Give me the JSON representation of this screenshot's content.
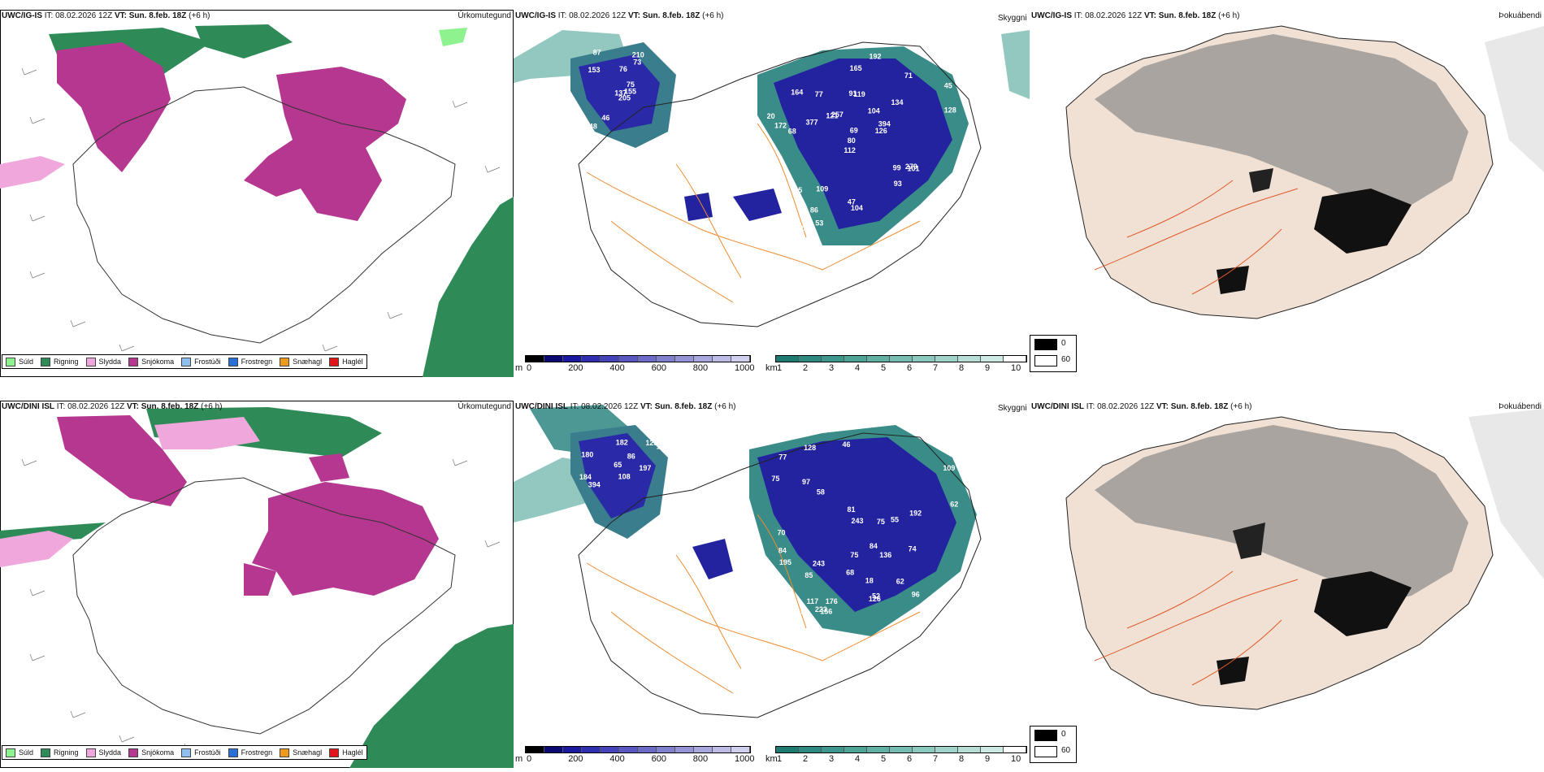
{
  "rows": [
    {
      "model": "UWC/IG-IS",
      "it": "IT: 08.02.2026 12Z",
      "vt_label": "VT:",
      "vt": "Sun. 8.feb. 18Z",
      "lead": "(+6 h)",
      "precip_title": "Úrkomutegund",
      "vis_title": "Skyggni",
      "fog_title": "Þokuábendi",
      "cloud_labels": [
        "205",
        "153",
        "137",
        "248",
        "75",
        "46",
        "210",
        "76",
        "73",
        "155",
        "87",
        "74",
        "68",
        "45",
        "112",
        "134",
        "80",
        "91",
        "104",
        "15",
        "257",
        "326",
        "86",
        "119",
        "394",
        "101",
        "164",
        "165",
        "172",
        "99",
        "128",
        "80",
        "47",
        "69",
        "77",
        "71",
        "109",
        "78",
        "147",
        "279",
        "192",
        "121",
        "377",
        "93",
        "53",
        "20",
        "126",
        "131",
        "104"
      ]
    },
    {
      "model": "UWC/DINI ISL",
      "it": "IT: 08.02.2026 12Z",
      "vt_label": "VT:",
      "vt": "Sun. 8.feb. 18Z",
      "lead": "(+6 h)",
      "precip_title": "Úrkomutegund",
      "vis_title": "Skyggni",
      "fog_title": "Þokuábendi",
      "cloud_labels": [
        "184",
        "182",
        "197",
        "135",
        "180",
        "86",
        "394",
        "86",
        "65",
        "125",
        "108",
        "74",
        "46",
        "75",
        "97",
        "85",
        "52",
        "70",
        "84",
        "68",
        "62",
        "96",
        "109",
        "81",
        "117",
        "243",
        "136",
        "128",
        "156",
        "126",
        "84",
        "104",
        "75",
        "115",
        "223",
        "195",
        "192",
        "77",
        "176",
        "58",
        "18",
        "55",
        "125",
        "62",
        "75",
        "243"
      ]
    }
  ],
  "precip_legend": [
    {
      "label": "Súld",
      "color": "#8ef28e"
    },
    {
      "label": "Rigning",
      "color": "#2e8b57"
    },
    {
      "label": "Slydda",
      "color": "#f0a8dc"
    },
    {
      "label": "Snjókoma",
      "color": "#b5378f"
    },
    {
      "label": "Frostúði",
      "color": "#8fbff0"
    },
    {
      "label": "Frostregn",
      "color": "#2a6fd6"
    },
    {
      "label": "Snæhagl",
      "color": "#f09a1c"
    },
    {
      "label": "Haglél",
      "color": "#e0161b"
    }
  ],
  "cloudbase_bar": {
    "unit": "m",
    "ticks": [
      "0",
      "200",
      "400",
      "600",
      "800",
      "1000"
    ],
    "colors": [
      "#000000",
      "#0a0a70",
      "#1a1aa0",
      "#2f2fb0",
      "#4444b8",
      "#5858c0",
      "#6c6cc8",
      "#8080cc",
      "#9494d6",
      "#a8a8de",
      "#bcbce6",
      "#d0d0ee"
    ]
  },
  "visibility_bar": {
    "unit": "km",
    "ticks": [
      "1",
      "2",
      "3",
      "4",
      "5",
      "6",
      "7",
      "8",
      "9",
      "10"
    ],
    "colors": [
      "#1f7a72",
      "#2e8a80",
      "#3d978c",
      "#4fa498",
      "#62b0a4",
      "#76bcb1",
      "#8bc8be",
      "#a0d3ca",
      "#b6ded7",
      "#cce9e4",
      "#ffffff"
    ]
  },
  "fog_legend": {
    "high": "0",
    "low": "60"
  }
}
